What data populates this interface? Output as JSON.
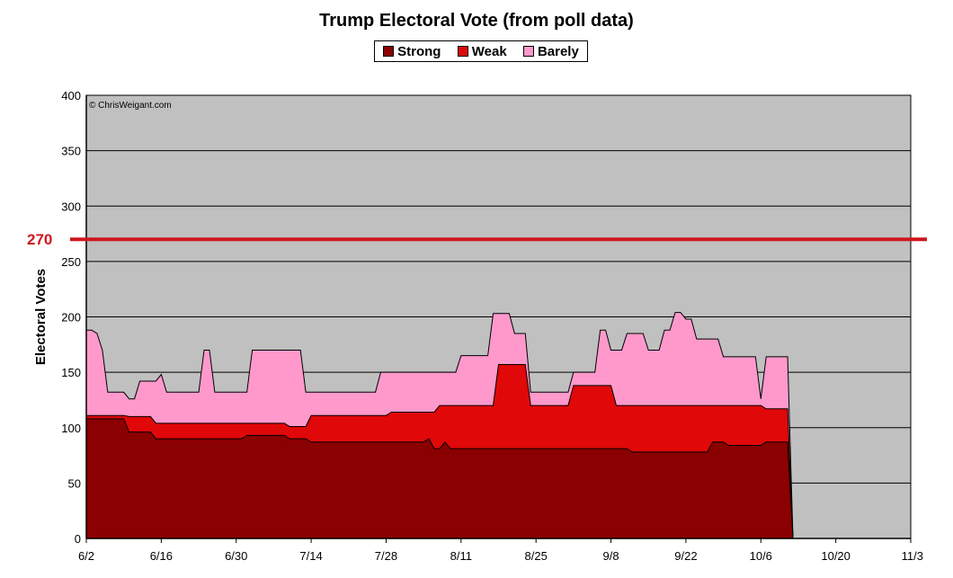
{
  "chart_data": {
    "type": "area",
    "title": "Trump Electoral Vote (from poll data)",
    "xlabel": "",
    "ylabel": "Electoral Votes",
    "ylim": [
      0,
      400
    ],
    "yticks": [
      0,
      50,
      100,
      150,
      200,
      250,
      300,
      350,
      400
    ],
    "xlim_days": [
      0,
      154
    ],
    "xticks": [
      {
        "day": 0,
        "label": "6/2"
      },
      {
        "day": 14,
        "label": "6/16"
      },
      {
        "day": 28,
        "label": "6/30"
      },
      {
        "day": 42,
        "label": "7/14"
      },
      {
        "day": 56,
        "label": "7/28"
      },
      {
        "day": 70,
        "label": "8/11"
      },
      {
        "day": 84,
        "label": "8/25"
      },
      {
        "day": 98,
        "label": "9/8"
      },
      {
        "day": 112,
        "label": "9/22"
      },
      {
        "day": 126,
        "label": "10/6"
      },
      {
        "day": 140,
        "label": "10/20"
      },
      {
        "day": 154,
        "label": "11/3"
      }
    ],
    "stacked": true,
    "grid": true,
    "legend_position": "top",
    "watermark": "© ChrisWeigant.com",
    "reference_line": {
      "value": 270,
      "label": "270",
      "color": "#d0161d"
    },
    "series": [
      {
        "name": "Strong",
        "color": "#8b0000",
        "points": [
          [
            0,
            108
          ],
          [
            7,
            108
          ],
          [
            8,
            96
          ],
          [
            12,
            96
          ],
          [
            13,
            90
          ],
          [
            29,
            90
          ],
          [
            30,
            93
          ],
          [
            37,
            93
          ],
          [
            38,
            90
          ],
          [
            41,
            90
          ],
          [
            42,
            87
          ],
          [
            63,
            87
          ],
          [
            64,
            90
          ],
          [
            65,
            81
          ],
          [
            66,
            81
          ],
          [
            67,
            87
          ],
          [
            68,
            81
          ],
          [
            101,
            81
          ],
          [
            102,
            78
          ],
          [
            116,
            78
          ],
          [
            117,
            87
          ],
          [
            119,
            87
          ],
          [
            120,
            84
          ],
          [
            126,
            84
          ],
          [
            127,
            87
          ],
          [
            131,
            87
          ],
          [
            132,
            0
          ]
        ]
      },
      {
        "name": "Weak",
        "color": "#e00808",
        "points": [
          [
            0,
            111
          ],
          [
            7,
            111
          ],
          [
            8,
            110
          ],
          [
            12,
            110
          ],
          [
            13,
            104
          ],
          [
            29,
            104
          ],
          [
            30,
            104
          ],
          [
            37,
            104
          ],
          [
            38,
            101
          ],
          [
            41,
            101
          ],
          [
            42,
            111
          ],
          [
            56,
            111
          ],
          [
            57,
            114
          ],
          [
            65,
            114
          ],
          [
            66,
            120
          ],
          [
            76,
            120
          ],
          [
            77,
            157
          ],
          [
            82,
            157
          ],
          [
            83,
            120
          ],
          [
            90,
            120
          ],
          [
            91,
            138
          ],
          [
            98,
            138
          ],
          [
            99,
            120
          ],
          [
            126,
            120
          ],
          [
            127,
            117
          ],
          [
            131,
            117
          ],
          [
            132,
            0
          ]
        ]
      },
      {
        "name": "Barely",
        "color": "#ff99cc",
        "points": [
          [
            0,
            188
          ],
          [
            1,
            188
          ],
          [
            2,
            185
          ],
          [
            3,
            170
          ],
          [
            4,
            132
          ],
          [
            7,
            132
          ],
          [
            8,
            126
          ],
          [
            9,
            126
          ],
          [
            10,
            142
          ],
          [
            13,
            142
          ],
          [
            14,
            148
          ],
          [
            15,
            132
          ],
          [
            21,
            132
          ],
          [
            22,
            170
          ],
          [
            23,
            170
          ],
          [
            24,
            132
          ],
          [
            30,
            132
          ],
          [
            31,
            170
          ],
          [
            40,
            170
          ],
          [
            41,
            132
          ],
          [
            54,
            132
          ],
          [
            55,
            150
          ],
          [
            69,
            150
          ],
          [
            70,
            165
          ],
          [
            75,
            165
          ],
          [
            76,
            203
          ],
          [
            79,
            203
          ],
          [
            80,
            185
          ],
          [
            82,
            185
          ],
          [
            83,
            132
          ],
          [
            90,
            132
          ],
          [
            91,
            150
          ],
          [
            95,
            150
          ],
          [
            96,
            188
          ],
          [
            97,
            188
          ],
          [
            98,
            170
          ],
          [
            100,
            170
          ],
          [
            101,
            185
          ],
          [
            104,
            185
          ],
          [
            105,
            170
          ],
          [
            107,
            170
          ],
          [
            108,
            188
          ],
          [
            109,
            188
          ],
          [
            110,
            204
          ],
          [
            111,
            204
          ],
          [
            112,
            198
          ],
          [
            113,
            198
          ],
          [
            114,
            180
          ],
          [
            118,
            180
          ],
          [
            119,
            164
          ],
          [
            125,
            164
          ],
          [
            126,
            126
          ],
          [
            127,
            164
          ],
          [
            129,
            164
          ],
          [
            130,
            164
          ],
          [
            131,
            164
          ],
          [
            132,
            0
          ]
        ]
      }
    ]
  }
}
